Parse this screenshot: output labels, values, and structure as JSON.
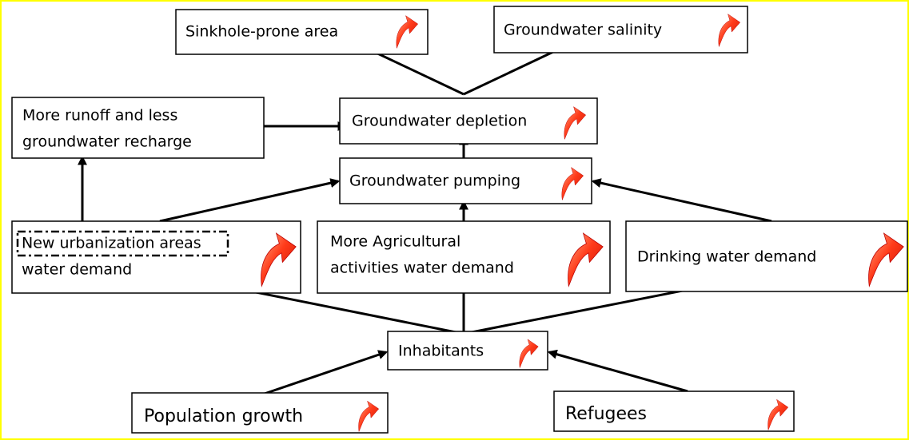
{
  "nodes": [
    {
      "lines": [
        "Sinkhole-prone area"
      ]
    },
    {
      "lines": [
        "Groundwater salinity"
      ]
    },
    {
      "lines": [
        "More runoff and less",
        "groundwater recharge"
      ]
    },
    {
      "lines": [
        "Groundwater depletion"
      ]
    },
    {
      "lines": [
        "Groundwater pumping"
      ]
    },
    {
      "lines": [
        "New urbanization areas",
        "water demand"
      ]
    },
    {
      "lines": [
        "More Agricultural",
        "activities water demand"
      ]
    },
    {
      "lines": [
        "Drinking water demand"
      ]
    },
    {
      "lines": [
        "Inhabitants"
      ]
    },
    {
      "lines": [
        "Population growth"
      ]
    },
    {
      "lines": [
        "Refugees"
      ]
    }
  ]
}
